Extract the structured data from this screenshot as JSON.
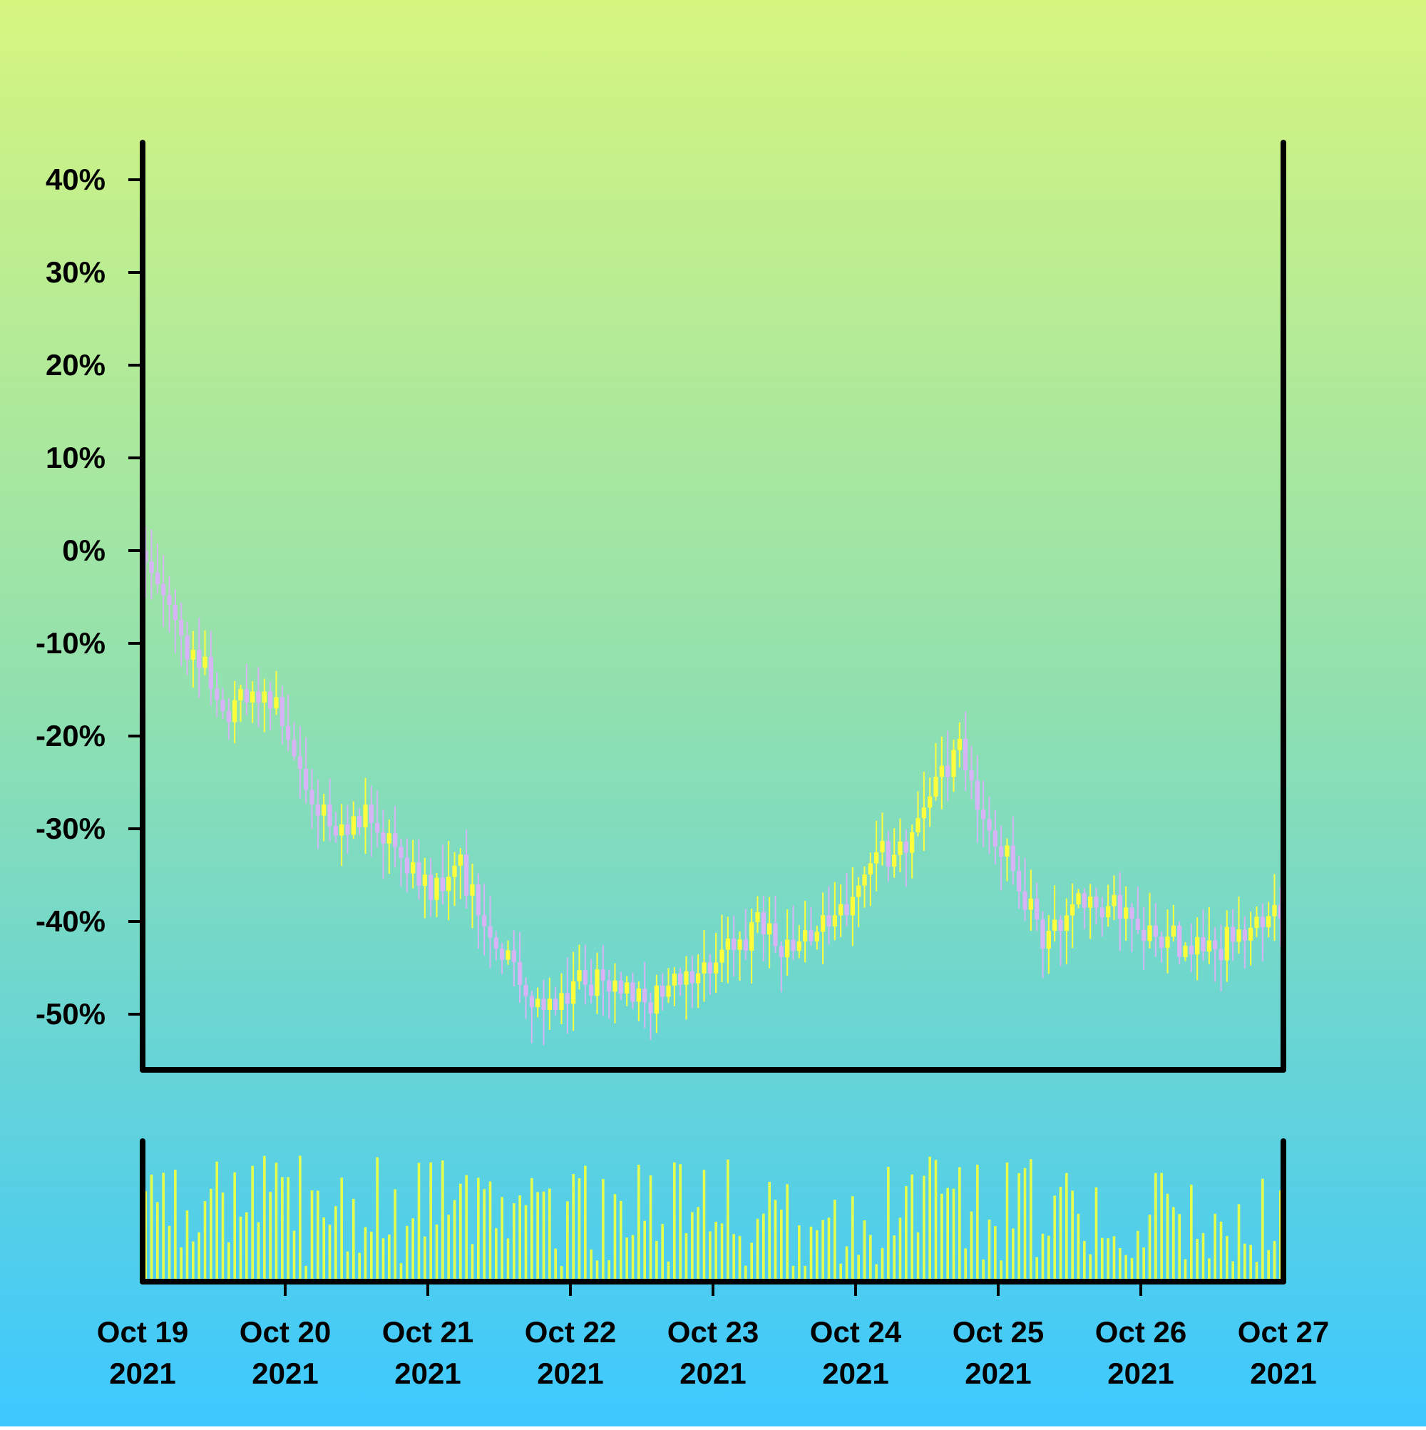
{
  "colors": {
    "bg_top": "#d6f57f",
    "bg_bottom": "#3cc8ff",
    "up": "#ffff3c",
    "down": "#d7b4f5",
    "volume": "#e6ff4d",
    "axis": "#000000"
  },
  "chart_data": {
    "type": "candlestick",
    "title": "",
    "ylabel": "",
    "xlabel": "",
    "grid": false,
    "legend": "none",
    "y_axis": {
      "ticks": [
        "40%",
        "30%",
        "20%",
        "10%",
        "0%",
        "-10%",
        "-20%",
        "-30%",
        "-40%",
        "-50%"
      ],
      "tick_values": [
        40,
        30,
        20,
        10,
        0,
        -10,
        -20,
        -30,
        -40,
        -50
      ],
      "ylim": [
        -56,
        44
      ],
      "unit": "%"
    },
    "x_axis": {
      "tick_labels": [
        [
          "Oct 19",
          "2021"
        ],
        [
          "Oct 20",
          "2021"
        ],
        [
          "Oct 21",
          "2021"
        ],
        [
          "Oct 22",
          "2021"
        ],
        [
          "Oct 23",
          "2021"
        ],
        [
          "Oct 24",
          "2021"
        ],
        [
          "Oct 25",
          "2021"
        ],
        [
          "Oct 26",
          "2021"
        ],
        [
          "Oct 27",
          "2021"
        ]
      ],
      "xlim": [
        "2021-10-19",
        "2021-10-27"
      ]
    },
    "candle_interval_hours": 1,
    "close_path_anchors": [
      [
        0,
        0
      ],
      [
        1,
        -1
      ],
      [
        4,
        -3
      ],
      [
        8,
        -11
      ],
      [
        12,
        -14
      ],
      [
        15,
        -17
      ],
      [
        20,
        -16
      ],
      [
        24,
        -18
      ],
      [
        28,
        -26
      ],
      [
        34,
        -31
      ],
      [
        38,
        -28
      ],
      [
        42,
        -31
      ],
      [
        48,
        -37
      ],
      [
        54,
        -35
      ],
      [
        60,
        -42
      ],
      [
        68,
        -50
      ],
      [
        76,
        -46
      ],
      [
        84,
        -48
      ],
      [
        96,
        -45
      ],
      [
        104,
        -40
      ],
      [
        108,
        -43
      ],
      [
        116,
        -40
      ],
      [
        124,
        -35
      ],
      [
        130,
        -30
      ],
      [
        137,
        -22
      ],
      [
        144,
        -31
      ],
      [
        152,
        -42
      ],
      [
        160,
        -38
      ],
      [
        168,
        -40
      ],
      [
        175,
        -43
      ],
      [
        192,
        -40
      ]
    ],
    "volume_panel": {
      "visible": true,
      "axis_labels": "none"
    }
  }
}
